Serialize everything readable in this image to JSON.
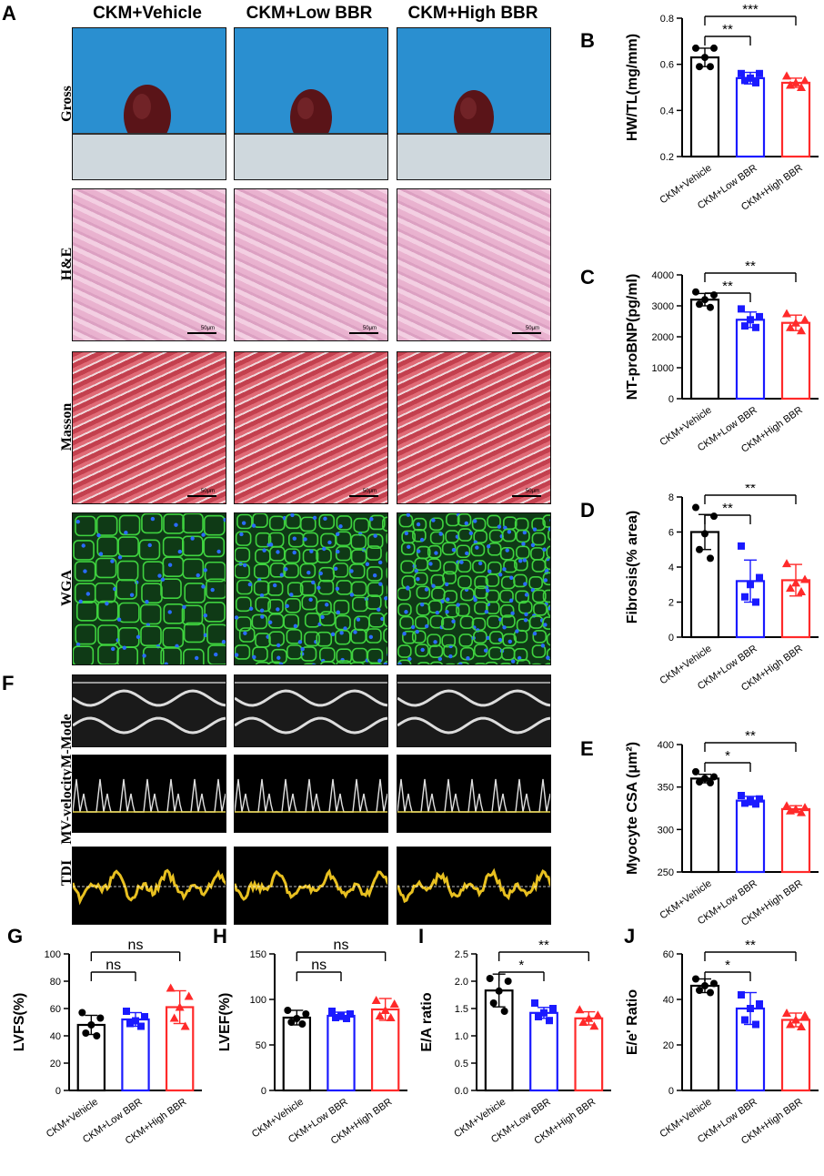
{
  "panel_letters": {
    "A": "A",
    "B": "B",
    "C": "C",
    "D": "D",
    "E": "E",
    "F": "F",
    "G": "G",
    "H": "H",
    "I": "I",
    "J": "J"
  },
  "columns": [
    "CKM+Vehicle",
    "CKM+Low BBR",
    "CKM+High BBR"
  ],
  "rows_A": [
    "Gross",
    "H&E",
    "Masson",
    "WGA"
  ],
  "rows_F": [
    "M-Mode",
    "MV-velocity",
    "TDI"
  ],
  "scale_label": "50μm",
  "colors": {
    "vehicle": "#000000",
    "low": "#1a1aff",
    "high": "#ff2a2a",
    "gross_bg": "#2a8fd0",
    "wga_bg": "#0f3a16",
    "tdi_trace": "#e8c020"
  },
  "chart_data": [
    {
      "id": "B",
      "type": "bar",
      "ylabel": "HW/TL(mg/mm)",
      "ylim": [
        0.2,
        0.8
      ],
      "yticks": [
        "0.2",
        "0.4",
        "0.6",
        "0.8"
      ],
      "categories": [
        "CKM+Vehicle",
        "CKM+Low BBR",
        "CKM+High BBR"
      ],
      "values": [
        0.63,
        0.54,
        0.52
      ],
      "errors": [
        0.04,
        0.025,
        0.02
      ],
      "points": [
        [
          0.67,
          0.67,
          0.63,
          0.59,
          0.59
        ],
        [
          0.56,
          0.56,
          0.54,
          0.53,
          0.52
        ],
        [
          0.55,
          0.53,
          0.52,
          0.51,
          0.5
        ]
      ],
      "sig": [
        {
          "from": 0,
          "to": 1,
          "label": "**"
        },
        {
          "from": 0,
          "to": 2,
          "label": "***"
        }
      ]
    },
    {
      "id": "C",
      "type": "bar",
      "ylabel": "NT-proBNP(pg/ml)",
      "ylim": [
        0,
        4000
      ],
      "yticks": [
        "0",
        "1000",
        "2000",
        "3000",
        "4000"
      ],
      "categories": [
        "CKM+Vehicle",
        "CKM+Low BBR",
        "CKM+High BBR"
      ],
      "values": [
        3200,
        2550,
        2450
      ],
      "errors": [
        200,
        250,
        250
      ],
      "points": [
        [
          3450,
          3350,
          3200,
          3050,
          2950
        ],
        [
          2900,
          2650,
          2550,
          2350,
          2300
        ],
        [
          2750,
          2550,
          2450,
          2300,
          2200
        ]
      ],
      "sig": [
        {
          "from": 0,
          "to": 1,
          "label": "**"
        },
        {
          "from": 0,
          "to": 2,
          "label": "**"
        }
      ]
    },
    {
      "id": "D",
      "type": "bar",
      "ylabel": "Fibrosis(% area)",
      "ylim": [
        0,
        8
      ],
      "yticks": [
        "0",
        "2",
        "4",
        "6",
        "8"
      ],
      "categories": [
        "CKM+Vehicle",
        "CKM+Low BBR",
        "CKM+High BBR"
      ],
      "values": [
        6.0,
        3.2,
        3.25
      ],
      "errors": [
        1.0,
        1.2,
        0.9
      ],
      "points": [
        [
          7.4,
          6.9,
          5.9,
          5.0,
          4.5
        ],
        [
          5.2,
          3.4,
          3.0,
          2.3,
          2.0
        ],
        [
          4.2,
          3.3,
          3.1,
          2.8,
          2.6
        ]
      ],
      "sig": [
        {
          "from": 0,
          "to": 1,
          "label": "**"
        },
        {
          "from": 0,
          "to": 2,
          "label": "**"
        }
      ]
    },
    {
      "id": "E",
      "type": "bar",
      "ylabel": "Myocyte CSA (μm²)",
      "ylim": [
        250,
        400
      ],
      "yticks": [
        "250",
        "300",
        "350",
        "400"
      ],
      "categories": [
        "CKM+Vehicle",
        "CKM+Low BBR",
        "CKM+High BBR"
      ],
      "values": [
        360,
        334,
        324
      ],
      "errors": [
        5,
        5,
        4
      ],
      "points": [
        [
          368,
          362,
          360,
          356,
          355
        ],
        [
          340,
          336,
          334,
          331,
          330
        ],
        [
          328,
          326,
          324,
          322,
          320
        ]
      ],
      "sig": [
        {
          "from": 0,
          "to": 1,
          "label": "*"
        },
        {
          "from": 0,
          "to": 2,
          "label": "**"
        }
      ]
    },
    {
      "id": "G",
      "type": "bar",
      "ylabel": "LVFS(%)",
      "ylim": [
        0,
        100
      ],
      "yticks": [
        "0",
        "20",
        "40",
        "60",
        "80",
        "100"
      ],
      "categories": [
        "CKM+Vehicle",
        "CKM+Low BBR",
        "CKM+High BBR"
      ],
      "values": [
        48,
        52,
        61
      ],
      "errors": [
        7,
        5,
        12
      ],
      "points": [
        [
          57,
          53,
          48,
          42,
          40
        ],
        [
          58,
          54,
          51,
          49,
          47
        ],
        [
          75,
          69,
          61,
          53,
          47
        ]
      ],
      "sig": [
        {
          "from": 0,
          "to": 1,
          "label": "ns"
        },
        {
          "from": 0,
          "to": 2,
          "label": "ns"
        }
      ]
    },
    {
      "id": "H",
      "type": "bar",
      "ylabel": "LVEF(%)",
      "ylim": [
        0,
        150
      ],
      "yticks": [
        "0",
        "50",
        "100",
        "150"
      ],
      "categories": [
        "CKM+Vehicle",
        "CKM+Low BBR",
        "CKM+High BBR"
      ],
      "values": [
        80,
        82,
        89
      ],
      "errors": [
        8,
        4,
        12
      ],
      "points": [
        [
          88,
          84,
          79,
          75,
          73
        ],
        [
          87,
          84,
          82,
          80,
          79
        ],
        [
          99,
          95,
          88,
          82,
          80
        ]
      ],
      "sig": [
        {
          "from": 0,
          "to": 1,
          "label": "ns"
        },
        {
          "from": 0,
          "to": 2,
          "label": "ns"
        }
      ]
    },
    {
      "id": "I",
      "type": "bar",
      "ylabel": "E/A ratio",
      "ylim": [
        0.0,
        2.5
      ],
      "yticks": [
        "0.0",
        "0.5",
        "1.0",
        "1.5",
        "2.0",
        "2.5"
      ],
      "categories": [
        "CKM+Vehicle",
        "CKM+Low BBR",
        "CKM+High BBR"
      ],
      "values": [
        1.83,
        1.42,
        1.32
      ],
      "errors": [
        0.3,
        0.1,
        0.12
      ],
      "points": [
        [
          2.05,
          2.0,
          1.82,
          1.6,
          1.45
        ],
        [
          1.6,
          1.5,
          1.42,
          1.35,
          1.28
        ],
        [
          1.48,
          1.38,
          1.32,
          1.25,
          1.18
        ]
      ],
      "sig": [
        {
          "from": 0,
          "to": 1,
          "label": "*"
        },
        {
          "from": 0,
          "to": 2,
          "label": "**"
        }
      ]
    },
    {
      "id": "J",
      "type": "bar",
      "ylabel": "E/e' Ratio",
      "ylim": [
        0,
        60
      ],
      "yticks": [
        "0",
        "20",
        "40",
        "60"
      ],
      "categories": [
        "CKM+Vehicle",
        "CKM+Low BBR",
        "CKM+High BBR"
      ],
      "values": [
        46,
        36,
        31
      ],
      "errors": [
        3,
        7,
        3
      ],
      "points": [
        [
          49,
          47,
          46,
          44,
          43
        ],
        [
          42,
          38,
          36,
          31,
          29
        ],
        [
          34,
          33,
          31,
          29,
          28
        ]
      ],
      "sig": [
        {
          "from": 0,
          "to": 1,
          "label": "*"
        },
        {
          "from": 0,
          "to": 2,
          "label": "**"
        }
      ]
    }
  ]
}
